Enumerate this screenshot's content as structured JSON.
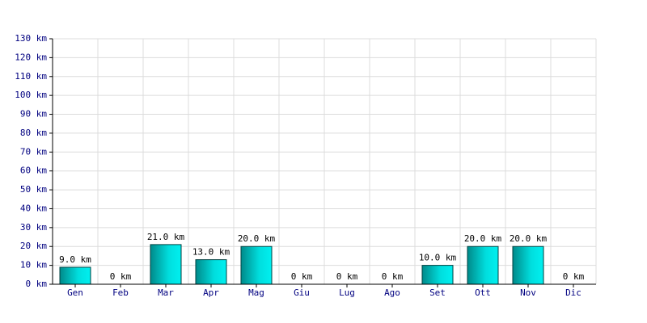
{
  "chart_data": {
    "type": "bar",
    "categories": [
      "Gen",
      "Feb",
      "Mar",
      "Apr",
      "Mag",
      "Giu",
      "Lug",
      "Ago",
      "Set",
      "Ott",
      "Nov",
      "Dic"
    ],
    "values": [
      9,
      0,
      21,
      13,
      20,
      0,
      0,
      0,
      10,
      20,
      20,
      0
    ],
    "value_labels": [
      "9.0 km",
      "0 km",
      "21.0 km",
      "13.0 km",
      "20.0 km",
      "0 km",
      "0 km",
      "0 km",
      "10.0 km",
      "20.0 km",
      "20.0 km",
      "0 km"
    ],
    "color": "#00c8c8",
    "ylim": [
      0,
      130
    ],
    "yticks": [
      {
        "value": 0,
        "label": "0 km"
      },
      {
        "value": 10,
        "label": "10 km"
      },
      {
        "value": 20,
        "label": "20 km"
      },
      {
        "value": 30,
        "label": "30 km"
      },
      {
        "value": 40,
        "label": "40 km"
      },
      {
        "value": 50,
        "label": "50 km"
      },
      {
        "value": 60,
        "label": "60 km"
      },
      {
        "value": 70,
        "label": "70 km"
      },
      {
        "value": 80,
        "label": "80 km"
      },
      {
        "value": 90,
        "label": "90 km"
      },
      {
        "value": 100,
        "label": "100 km"
      },
      {
        "value": 110,
        "label": "110 km"
      },
      {
        "value": 120,
        "label": "120 km"
      },
      {
        "value": 130,
        "label": "130 km"
      }
    ],
    "grid": true
  }
}
